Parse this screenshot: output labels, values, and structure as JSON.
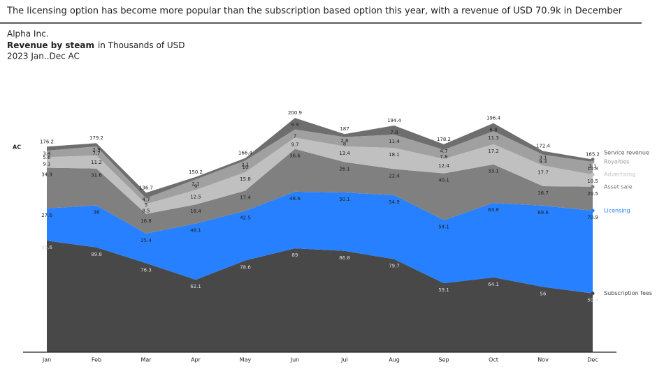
{
  "headline": "The licensing option has become more popular than the subscription based option this year, with a revenue of USD 70.9k in December",
  "chart_data": {
    "type": "stacked-area",
    "company": "Alpha Inc.",
    "title": "Revenue by steam",
    "unit": "in Thousands of USD",
    "period": "2023 Jan..Dec AC",
    "scenario": "AC",
    "categories": [
      "Jan",
      "Feb",
      "Mar",
      "Apr",
      "May",
      "Jun",
      "Jul",
      "Aug",
      "Sep",
      "Oct",
      "Nov",
      "Dec"
    ],
    "ylim": [
      0,
      220
    ],
    "totals": [
      176.2,
      179.2,
      136.7,
      150.2,
      166.4,
      200.9,
      187.0,
      194.4,
      178.2,
      196.4,
      172.4,
      165.2
    ],
    "series": [
      {
        "name": "Subscription fees",
        "color": "#484848",
        "label_color": "#444444",
        "values": [
          95.6,
          89.8,
          76.3,
          62.1,
          78.6,
          89.0,
          86.8,
          79.7,
          59.1,
          64.1,
          56.0,
          50.4
        ]
      },
      {
        "name": "Licensing",
        "color": "#2680ff",
        "label_color": "#2680ff",
        "values": [
          27.6,
          36.0,
          25.4,
          48.1,
          42.5,
          48.6,
          50.1,
          54.9,
          54.1,
          63.8,
          69.6,
          70.9
        ]
      },
      {
        "name": "Asset sale",
        "color": "#808080",
        "label_color": "#777777",
        "values": [
          34.9,
          31.6,
          16.8,
          16.4,
          17.4,
          36.6,
          26.1,
          22.4,
          40.1,
          33.1,
          16.7,
          20.5
        ]
      },
      {
        "name": "Advertising",
        "color": "#c0c0c0",
        "label_color": "#c4c4c4",
        "values": [
          9.1,
          11.2,
          8.5,
          12.5,
          15.8,
          9.7,
          13.4,
          18.1,
          12.4,
          17.2,
          17.7,
          10.5
        ]
      },
      {
        "name": "Royalties",
        "color": "#a0a0a0",
        "label_color": "#999999",
        "values": [
          5.6,
          7.7,
          5.0,
          9.0,
          10.0,
          7.0,
          8.0,
          11.4,
          7.8,
          11.3,
          9.3,
          10.8
        ]
      },
      {
        "name": "Service revenue",
        "color": "#6e6e6e",
        "label_color": "#555555",
        "values": [
          3.4,
          2.9,
          4.7,
          2.1,
          2.1,
          9.9,
          2.6,
          7.8,
          4.7,
          6.8,
          3.1,
          2.1
        ]
      }
    ]
  }
}
